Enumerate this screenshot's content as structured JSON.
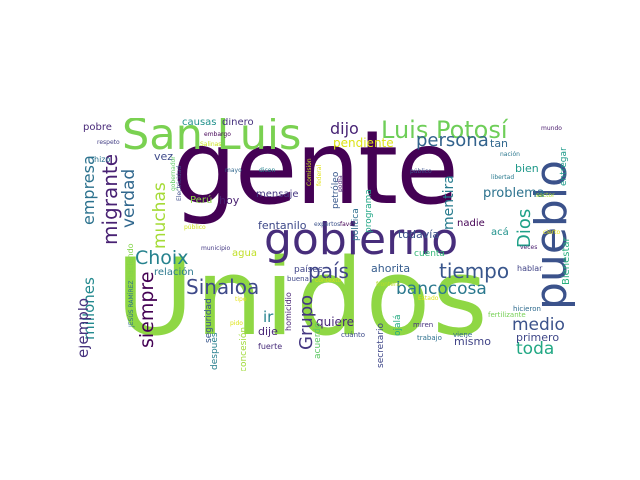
{
  "wordcloud": {
    "palette": {
      "dark_purple": "#440154",
      "purple": "#482878",
      "indigo": "#3e4989",
      "blue": "#31688e",
      "teal_blue": "#26828e",
      "teal": "#1f9e89",
      "green": "#35b779",
      "lime": "#6ece58",
      "yellow_green": "#b5de2b",
      "yellow": "#fde725"
    },
    "words": [
      {
        "text": "gente",
        "color": "#440154"
      },
      {
        "text": "Unidos",
        "color": "#8fd744"
      },
      {
        "text": "San Luis",
        "color": "#7ad151"
      },
      {
        "text": "gobierno",
        "color": "#472d7b"
      },
      {
        "text": "pueblo",
        "color": "#3b528b"
      },
      {
        "text": "Luis Potosí",
        "color": "#6ece58"
      },
      {
        "text": "país",
        "color": "#404688"
      },
      {
        "text": "tiempo",
        "color": "#39568c"
      },
      {
        "text": "bancocosa",
        "color": "#2a788e"
      },
      {
        "text": "Sinaloa",
        "color": "#3e4989"
      },
      {
        "text": "Choix",
        "color": "#26828e"
      },
      {
        "text": "migrante",
        "color": "#482173"
      },
      {
        "text": "muchas",
        "color": "#a5db36"
      },
      {
        "text": "verdad",
        "color": "#31688e"
      },
      {
        "text": "siempre",
        "color": "#440154"
      },
      {
        "text": "empresa",
        "color": "#2c728e"
      },
      {
        "text": "millones",
        "color": "#23898e"
      },
      {
        "text": "ejemplo",
        "color": "#46327e"
      },
      {
        "text": "persona",
        "color": "#33638d"
      },
      {
        "text": "dijo",
        "color": "#482475"
      },
      {
        "text": "Dios",
        "color": "#1fa188"
      },
      {
        "text": "medio",
        "color": "#3b528b"
      },
      {
        "text": "toda",
        "color": "#22a884"
      },
      {
        "text": "mentira",
        "color": "#287c8e"
      },
      {
        "text": "Grupo",
        "color": "#453781"
      },
      {
        "text": "problema",
        "color": "#2c728e"
      },
      {
        "text": "pendiente",
        "color": "#dde318"
      },
      {
        "text": "tan",
        "color": "#31688e"
      },
      {
        "text": "quiere",
        "color": "#482878"
      },
      {
        "text": "ahorita",
        "color": "#365c8d"
      },
      {
        "text": "primero",
        "color": "#3f4788"
      },
      {
        "text": "mismo",
        "color": "#414487"
      },
      {
        "text": "bien",
        "color": "#1f998a"
      },
      {
        "text": "vez",
        "color": "#3e4a89"
      },
      {
        "text": "hoy",
        "color": "#481f70"
      },
      {
        "text": "agua",
        "color": "#c0df25"
      },
      {
        "text": "relación",
        "color": "#2a788e"
      },
      {
        "text": "fentanilo",
        "color": "#3e4989"
      },
      {
        "text": "mensaje",
        "color": "#453882"
      },
      {
        "text": "todavía",
        "color": "#3b528b"
      },
      {
        "text": "nadie",
        "color": "#440154"
      },
      {
        "text": "acá",
        "color": "#20928c"
      },
      {
        "text": "ir",
        "color": "#26828e"
      },
      {
        "text": "dije",
        "color": "#482576"
      },
      {
        "text": "pobre",
        "color": "#482979"
      },
      {
        "text": "causas",
        "color": "#21918c"
      },
      {
        "text": "dinero",
        "color": "#46327e"
      },
      {
        "text": "Perú",
        "color": "#8bd646"
      },
      {
        "text": "seguridad",
        "color": "#39568c"
      },
      {
        "text": "después",
        "color": "#277f8e"
      },
      {
        "text": "concesión",
        "color": "#a0da39"
      },
      {
        "text": "homicidio",
        "color": "#482475"
      },
      {
        "text": "acuerdo",
        "color": "#5cc863"
      },
      {
        "text": "secretario",
        "color": "#3f4788"
      },
      {
        "text": "cuenta",
        "color": "#35b779"
      },
      {
        "text": "política",
        "color": "#2e6e8e"
      },
      {
        "text": "programa",
        "color": "#21a685"
      },
      {
        "text": "petróleo",
        "color": "#38588c"
      },
      {
        "text": "entregar",
        "color": "#1e9b8a"
      },
      {
        "text": "Bienestar",
        "color": "#2ab07f"
      },
      {
        "text": "hablar",
        "color": "#414487"
      },
      {
        "text": "ojalá",
        "color": "#25ab82"
      },
      {
        "text": "países",
        "color": "#404588"
      },
      {
        "text": "fuerte",
        "color": "#472c7a"
      },
      {
        "text": "cuánto",
        "color": "#3e4c8a"
      },
      {
        "text": "trabajo",
        "color": "#2d708e"
      },
      {
        "text": "miren",
        "color": "#46337f"
      },
      {
        "text": "viene",
        "color": "#31678e"
      },
      {
        "text": "hicieron",
        "color": "#2f6b8e"
      },
      {
        "text": "fertilizante",
        "color": "#75d054"
      },
      {
        "text": "mundo",
        "color": "#481a6c"
      },
      {
        "text": "nación",
        "color": "#2a778e"
      },
      {
        "text": "público",
        "color": "#3b518b"
      },
      {
        "text": "libertad",
        "color": "#297a8e"
      },
      {
        "text": "sector",
        "color": "#addc30"
      },
      {
        "text": "respeto",
        "color": "#433e85"
      },
      {
        "text": "hizo",
        "color": "#2c738e"
      },
      {
        "text": "embargo",
        "color": "#440256"
      },
      {
        "text": "Salinas",
        "color": "#cae11f"
      },
      {
        "text": "mayo",
        "color": "#31688e"
      },
      {
        "text": "dicen",
        "color": "#26828e"
      },
      {
        "text": "podía",
        "color": "#482173"
      },
      {
        "text": "Electricidad",
        "color": "#3e4c8a"
      },
      {
        "text": "gobernador",
        "color": "#5ec962"
      },
      {
        "text": "haciendo",
        "color": "#84d44b"
      },
      {
        "text": "público",
        "color": "#d2e21b"
      },
      {
        "text": "municipio",
        "color": "#443983"
      },
      {
        "text": "JESÚS RAMÍREZ",
        "color": "#2e6d8e"
      },
      {
        "text": "buena",
        "color": "#3f4788"
      },
      {
        "text": "contexto",
        "color": "#d8e219"
      },
      {
        "text": "tipo",
        "color": "#e5e419"
      },
      {
        "text": "pido",
        "color": "#dde318"
      },
      {
        "text": "expertos",
        "color": "#3b528b"
      },
      {
        "text": "favor",
        "color": "#440154"
      },
      {
        "text": "veces",
        "color": "#481b6d"
      },
      {
        "text": "frontera",
        "color": "#b8de29"
      },
      {
        "text": "Estado",
        "color": "#dde318"
      },
      {
        "text": "Comisión",
        "color": "#c8e020"
      },
      {
        "text": "federal",
        "color": "#e2e418"
      },
      {
        "text": "cierto",
        "color": "#e5e419"
      }
    ]
  }
}
